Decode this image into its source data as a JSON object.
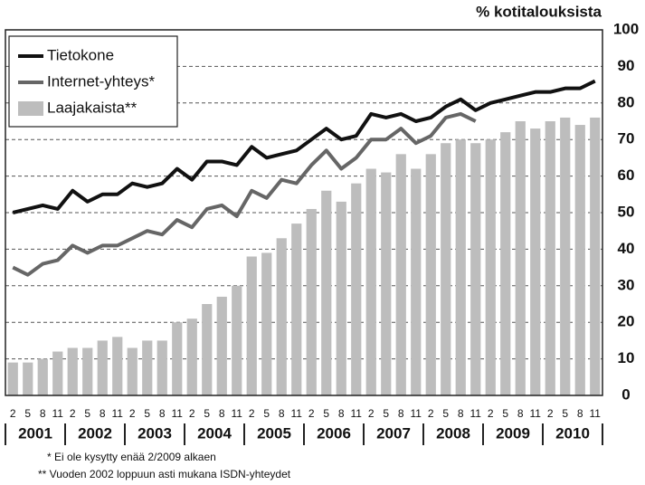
{
  "chart_data": {
    "type": "combo",
    "y_label": "% kotitalouksista",
    "categories": [
      "2",
      "5",
      "8",
      "11",
      "2",
      "5",
      "8",
      "11",
      "2",
      "5",
      "8",
      "11",
      "2",
      "5",
      "8",
      "11",
      "2",
      "5",
      "8",
      "11",
      "2",
      "5",
      "8",
      "11",
      "2",
      "5",
      "8",
      "11",
      "2",
      "5",
      "8",
      "11",
      "2",
      "5",
      "8",
      "11",
      "2",
      "5",
      "8",
      "11"
    ],
    "years": [
      "2001",
      "2002",
      "2003",
      "2004",
      "2005",
      "2006",
      "2007",
      "2008",
      "2009",
      "2010"
    ],
    "series": [
      {
        "name": "Tietokone",
        "type": "line",
        "color": "#111111",
        "values": [
          50,
          51,
          52,
          51,
          56,
          53,
          55,
          55,
          58,
          57,
          58,
          62,
          59,
          64,
          64,
          63,
          68,
          65,
          66,
          67,
          70,
          73,
          70,
          71,
          77,
          76,
          77,
          75,
          76,
          79,
          81,
          78,
          80,
          81,
          82,
          83,
          83,
          84,
          84,
          86
        ]
      },
      {
        "name": "Internet-yhteys*",
        "type": "line",
        "color": "#666666",
        "values": [
          35,
          33,
          36,
          37,
          41,
          39,
          41,
          41,
          43,
          45,
          44,
          48,
          46,
          51,
          52,
          49,
          56,
          54,
          59,
          58,
          63,
          67,
          62,
          65,
          70,
          70,
          73,
          69,
          71,
          76,
          77,
          75,
          null,
          null,
          null,
          null,
          null,
          null,
          null,
          null
        ]
      },
      {
        "name": "Laajakaista**",
        "type": "bar",
        "color": "#bdbdbd",
        "values": [
          9,
          9,
          10,
          12,
          13,
          13,
          15,
          16,
          13,
          15,
          15,
          20,
          21,
          25,
          27,
          30,
          38,
          39,
          43,
          47,
          51,
          56,
          53,
          58,
          62,
          61,
          66,
          62,
          66,
          69,
          70,
          69,
          70,
          72,
          75,
          73,
          75,
          76,
          74,
          76
        ]
      }
    ],
    "ylim": [
      0,
      100
    ],
    "yticks": [
      0,
      10,
      20,
      30,
      40,
      50,
      60,
      70,
      80,
      90,
      100
    ],
    "grid": true,
    "legend": "upper left",
    "notes": [
      "* Ei ole kysytty enää 2/2009 alkaen",
      "** Vuoden 2002 loppuun asti mukana ISDN-yhteydet"
    ]
  }
}
